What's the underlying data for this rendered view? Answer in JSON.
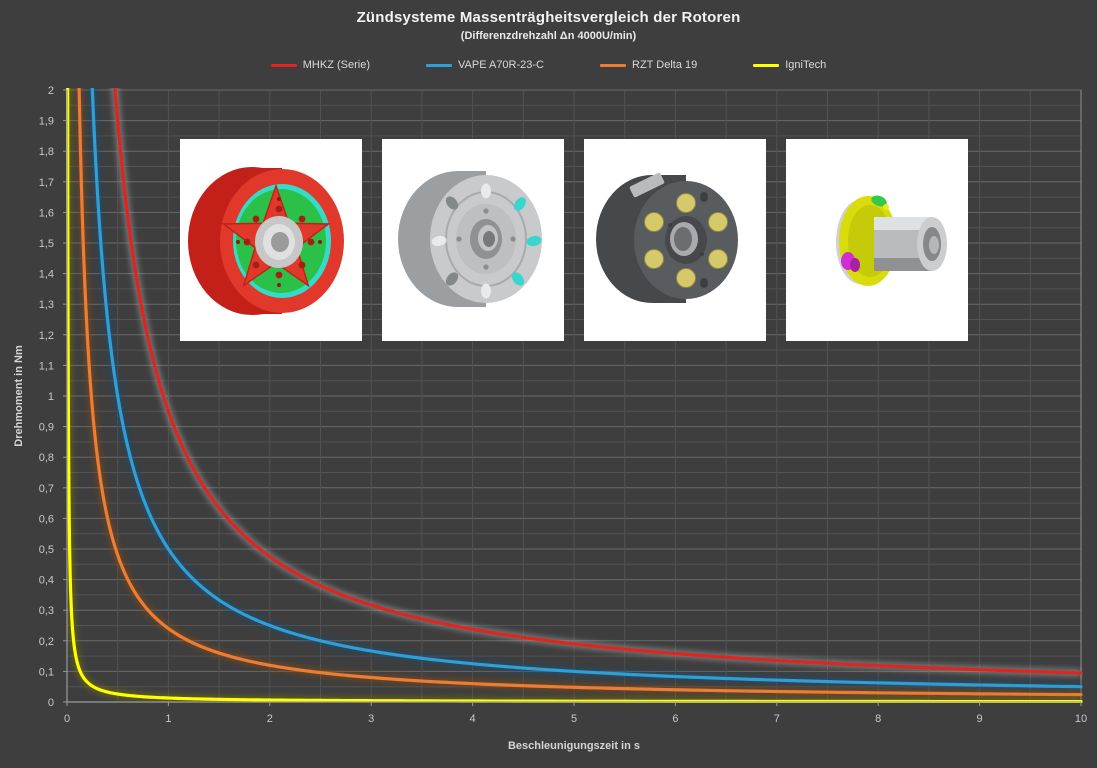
{
  "page": {
    "background": "#3e3e3e"
  },
  "chart_data": {
    "type": "line",
    "title": "Zündsysteme Massenträgheitsvergleich der Rotoren",
    "subtitle": "(Differenzdrehzahl Δn 4000U/min)",
    "xlabel": "Beschleunigungszeit in s",
    "ylabel": "Drehmoment in Nm",
    "xlim": [
      0,
      10
    ],
    "ylim": [
      0,
      2
    ],
    "x_tick_step": 1,
    "y_tick_step": 0.1,
    "x_grid_step": 0.5,
    "y_grid_step": 0.05,
    "grid": true,
    "legend_position": "top",
    "decimal_separator": ",",
    "curve_model": "torque = c / time (hyperbola: rotor inertia × Δω = const)",
    "x_samples": [
      1,
      2,
      3,
      4,
      5,
      6,
      7,
      8,
      9,
      10
    ],
    "series": [
      {
        "name": "MHKZ (Serie)",
        "color": "#e02420",
        "glow_color": "#a8a8a8",
        "c": 0.95,
        "values_at_x": [
          0.95,
          0.475,
          0.317,
          0.238,
          0.19,
          0.158,
          0.136,
          0.119,
          0.106,
          0.095
        ]
      },
      {
        "name": "VAPE A70R-23-C",
        "color": "#2da0d8",
        "glow_color": "#15507e",
        "c": 0.5,
        "values_at_x": [
          0.5,
          0.25,
          0.167,
          0.125,
          0.1,
          0.083,
          0.071,
          0.063,
          0.056,
          0.05
        ]
      },
      {
        "name": "RZT Delta 19",
        "color": "#ed7d31",
        "glow_color": "#8f4a12",
        "c": 0.24,
        "values_at_x": [
          0.24,
          0.12,
          0.08,
          0.06,
          0.048,
          0.04,
          0.034,
          0.03,
          0.027,
          0.024
        ]
      },
      {
        "name": "IgniTech",
        "color": "#feff00",
        "glow_color": "#7e7e00",
        "c": 0.013,
        "values_at_x": [
          0.013,
          0.007,
          0.004,
          0.003,
          0.003,
          0.002,
          0.002,
          0.002,
          0.001,
          0.001
        ]
      }
    ],
    "colors": {
      "background": "#3e3e3e",
      "grid_minor": "#525252",
      "grid_major": "#6a6a6a",
      "plot_right_edge": "#8f8f8f",
      "axis": "#9a9a9a",
      "tick_text": "#c8c8c8",
      "title_text": "#f2f2f2"
    }
  },
  "rotor_images": [
    {
      "name": "red-flywheel-rotor"
    },
    {
      "name": "silver-round-rotor"
    },
    {
      "name": "dark-magnet-rotor"
    },
    {
      "name": "small-yellow-hub-rotor"
    }
  ]
}
